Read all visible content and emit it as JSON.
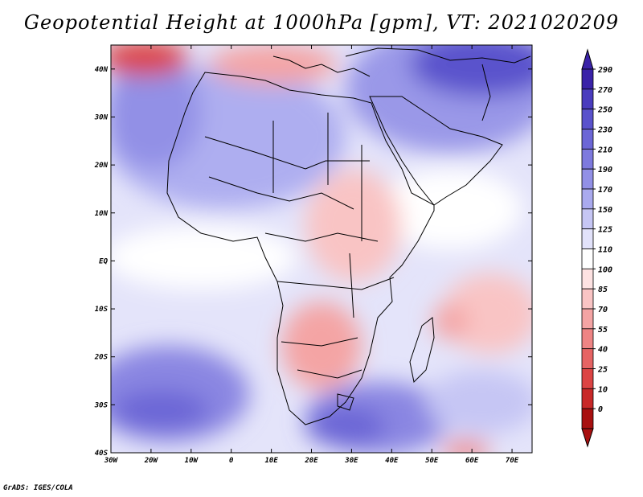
{
  "title": "Geopotential Height at 1000hPa [gpm], VT: 2021020209",
  "credit": "GrADS: IGES/COLA",
  "map": {
    "lat_labels": [
      "40N",
      "30N",
      "20N",
      "10N",
      "EQ",
      "10S",
      "20S",
      "30S",
      "40S"
    ],
    "lon_labels": [
      "30W",
      "20W",
      "10W",
      "0",
      "10E",
      "20E",
      "30E",
      "40E",
      "50E",
      "60E",
      "70E"
    ],
    "extent": {
      "lon_min": -30,
      "lon_max": 75,
      "lat_min": -40,
      "lat_max": 45
    }
  },
  "colorbar": {
    "labels": [
      "290",
      "270",
      "250",
      "230",
      "210",
      "190",
      "170",
      "150",
      "125",
      "110",
      "100",
      "85",
      "70",
      "55",
      "40",
      "25",
      "10",
      "0"
    ],
    "colors": [
      "#3a22a8",
      "#4a3cbe",
      "#5a52cc",
      "#6c66d6",
      "#7e7ade",
      "#9290e6",
      "#aaaaee",
      "#c6c6f4",
      "#e2e2fa",
      "#ffffff",
      "#fde2e2",
      "#f9c4c4",
      "#f4a4a4",
      "#ee8484",
      "#e66464",
      "#dc4444",
      "#c82828",
      "#a81010"
    ]
  }
}
